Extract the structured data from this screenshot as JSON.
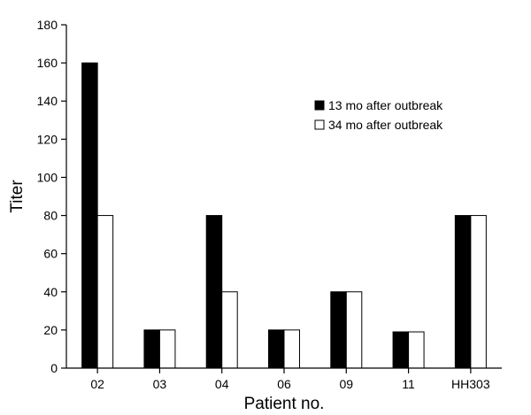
{
  "chart_data": {
    "type": "bar",
    "title": "",
    "xlabel": "Patient no.",
    "ylabel": "Titer",
    "ylim": [
      0,
      180
    ],
    "yticks": [
      0,
      20,
      40,
      60,
      80,
      100,
      120,
      140,
      160,
      180
    ],
    "categories": [
      "02",
      "03",
      "04",
      "06",
      "09",
      "11",
      "HH303"
    ],
    "series": [
      {
        "name": "13 mo after outbreak",
        "color": "#000000",
        "values": [
          160,
          20,
          80,
          20,
          40,
          19,
          80
        ]
      },
      {
        "name": "34 mo after outbreak",
        "color": "#ffffff",
        "values": [
          80,
          20,
          40,
          20,
          40,
          19,
          80
        ]
      }
    ],
    "legend_position": "top-right",
    "grid": false
  }
}
